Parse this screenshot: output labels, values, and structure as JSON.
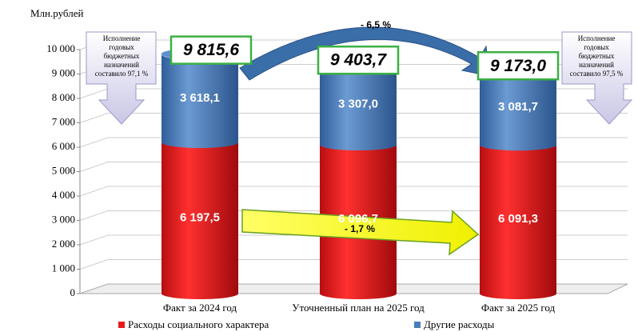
{
  "chart_data": {
    "type": "bar",
    "stacked": true,
    "ylabel": "Млн.рублей",
    "categories": [
      "Факт за 2024 год",
      "Уточненный план на 2025 год",
      "Факт за 2025 год"
    ],
    "series": [
      {
        "name": "Расходы социального характера",
        "color": "#e8191b",
        "values": [
          6197.5,
          6096.7,
          6091.3
        ],
        "value_labels": [
          "6 197,5",
          "6 096,7",
          "6 091,3"
        ]
      },
      {
        "name": "Другие расходы",
        "color": "#4a7ebb",
        "values": [
          3618.1,
          3307.0,
          3081.7
        ],
        "value_labels": [
          "3 618,1",
          "3 307,0",
          "3 081,7"
        ]
      }
    ],
    "totals": {
      "values": [
        9815.6,
        9403.7,
        9173.0
      ],
      "value_labels": [
        "9 815,6",
        "9 403,7",
        "9 173,0"
      ]
    },
    "ylim": [
      0,
      10000
    ],
    "yticks": [
      0,
      {
        "value": 1000,
        "label": "1 000"
      },
      {
        "value": 2000,
        "label": "2 000"
      },
      {
        "value": 3000,
        "label": "3 000"
      },
      {
        "value": 4000,
        "label": "4 000"
      },
      {
        "value": 5000,
        "label": "5 000"
      },
      {
        "value": 6000,
        "label": "6 000"
      },
      {
        "value": 7000,
        "label": "7 000"
      },
      {
        "value": 8000,
        "label": "8 000"
      },
      {
        "value": 9000,
        "label": "9 000"
      },
      {
        "value": 10000,
        "label": "10 000"
      }
    ],
    "grid": true,
    "legend": "bottom",
    "annotations": {
      "total_change": "- 6,5 %",
      "social_change": "- 1,7 %",
      "callout_left": [
        "Исполнение",
        "годовых",
        "бюджетных",
        "назначений",
        "составило 97,1 %"
      ],
      "callout_right": [
        "Исполнение",
        "годовых",
        "бюджетных",
        "назначений",
        "составило 97,5 %"
      ]
    }
  }
}
